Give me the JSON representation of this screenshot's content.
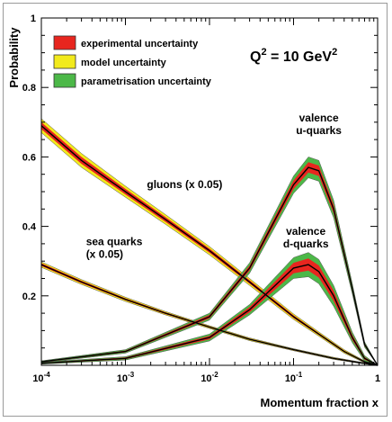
{
  "chart_data": {
    "type": "line",
    "xlabel": "Momentum fraction x",
    "ylabel": "Probability",
    "xscale": "log",
    "xlim": [
      0.0001,
      1
    ],
    "ylim": [
      0,
      1
    ],
    "x_tick_labels": [
      {
        "base": "10",
        "exp": "-4"
      },
      {
        "base": "10",
        "exp": "-3"
      },
      {
        "base": "10",
        "exp": "-2"
      },
      {
        "base": "10",
        "exp": "-1"
      },
      {
        "base": "1",
        "exp": ""
      }
    ],
    "y_tick_labels": [
      "0.2",
      "0.4",
      "0.6",
      "0.8",
      "1"
    ],
    "annotation": {
      "base": "Q",
      "sup1": "2",
      "mid": " = 10 GeV",
      "sup2": "2"
    },
    "legend": {
      "placement": "top-left",
      "items": [
        {
          "label": "experimental uncertainty",
          "color": "#e8261f"
        },
        {
          "label": "model uncertainty",
          "color": "#f2ea1c"
        },
        {
          "label": "parametrisation uncertainty",
          "color": "#4cb848"
        }
      ]
    },
    "series": [
      {
        "key": "gluons",
        "lines": [
          "gluons (x 0.05)"
        ],
        "x": [
          0.0001,
          0.0003,
          0.001,
          0.003,
          0.01,
          0.03,
          0.1,
          0.2,
          0.4,
          0.7,
          1
        ],
        "y": [
          0.69,
          0.59,
          0.5,
          0.42,
          0.33,
          0.24,
          0.14,
          0.09,
          0.04,
          0.01,
          0.0
        ],
        "band": [
          0.02,
          0.02,
          0.016,
          0.014,
          0.012,
          0.01,
          0.008,
          0.006,
          0.005,
          0.003,
          0.0
        ]
      },
      {
        "key": "sea",
        "lines": [
          "sea quarks",
          "(x 0.05)"
        ],
        "x": [
          0.0001,
          0.0003,
          0.001,
          0.003,
          0.01,
          0.03,
          0.1,
          0.3,
          0.6,
          1
        ],
        "y": [
          0.29,
          0.24,
          0.19,
          0.15,
          0.11,
          0.075,
          0.045,
          0.02,
          0.008,
          0.0
        ],
        "band": [
          0.008,
          0.007,
          0.006,
          0.005,
          0.004,
          0.004,
          0.003,
          0.003,
          0.002,
          0.0
        ]
      },
      {
        "key": "uv",
        "lines": [
          "valence",
          "u-quarks"
        ],
        "x": [
          0.0001,
          0.001,
          0.01,
          0.03,
          0.1,
          0.15,
          0.2,
          0.3,
          0.5,
          0.7,
          1
        ],
        "y": [
          0.01,
          0.04,
          0.14,
          0.28,
          0.52,
          0.57,
          0.56,
          0.45,
          0.22,
          0.06,
          0.0
        ],
        "band": [
          0.003,
          0.005,
          0.01,
          0.015,
          0.025,
          0.03,
          0.03,
          0.025,
          0.015,
          0.008,
          0.0
        ]
      },
      {
        "key": "dv",
        "lines": [
          "valence",
          "d-quarks"
        ],
        "x": [
          0.0001,
          0.001,
          0.01,
          0.03,
          0.1,
          0.15,
          0.2,
          0.3,
          0.5,
          0.7,
          1
        ],
        "y": [
          0.006,
          0.02,
          0.08,
          0.16,
          0.28,
          0.29,
          0.27,
          0.2,
          0.08,
          0.02,
          0.0
        ],
        "band": [
          0.003,
          0.005,
          0.01,
          0.015,
          0.03,
          0.035,
          0.035,
          0.03,
          0.015,
          0.008,
          0.0
        ]
      }
    ]
  }
}
